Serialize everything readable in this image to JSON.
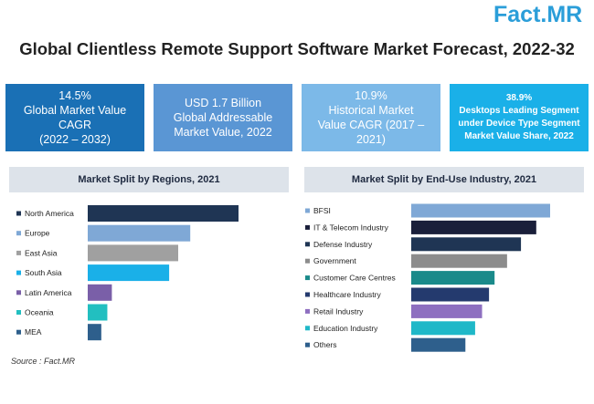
{
  "brand": {
    "name": "Fact.MR",
    "part1": "Fact",
    "dot": ".",
    "part2": "MR"
  },
  "title": "Global Clientless Remote Support Software Market Forecast, 2022-32",
  "stats": [
    {
      "lines": [
        "14.5%",
        "Global Market Value",
        "CAGR",
        "(2022 – 2032)"
      ],
      "color": "#1a70b5"
    },
    {
      "lines": [
        "USD 1.7 Billion",
        "Global Addressable",
        "Market Value, 2022"
      ],
      "color": "#5a96d4"
    },
    {
      "lines": [
        "10.9%",
        "Historical Market",
        "Value CAGR (2017 –",
        "2021)"
      ],
      "color": "#7cb9e8"
    },
    {
      "lines": [
        "38.9%",
        "Desktops Leading Segment",
        "under Device Type Segment",
        "Market Value Share, 2022"
      ],
      "color": "#1ab0e8"
    }
  ],
  "source": "Source : Fact.MR",
  "chart_data": [
    {
      "type": "bar",
      "orientation": "horizontal",
      "title": "Market Split by Regions, 2021",
      "categories": [
        "North America",
        "Europe",
        "East Asia",
        "South Asia",
        "Latin America",
        "Oceania",
        "MEA"
      ],
      "values": [
        100,
        68,
        60,
        54,
        16,
        13,
        9
      ],
      "colors": [
        "#1f3554",
        "#7fa8d6",
        "#a0a0a0",
        "#1ab0e8",
        "#7a5fa8",
        "#22bfc0",
        "#2e5f8c"
      ],
      "xlabel": "",
      "ylabel": "",
      "grid": false
    },
    {
      "type": "bar",
      "orientation": "horizontal",
      "title": "Market Split by End-Use Industry, 2021",
      "categories": [
        "BFSI",
        "IT & Telecom Industry",
        "Defense Industry",
        "Government",
        "Customer Care Centres",
        "Healthcare Industry",
        "Retail Industry",
        "Education Industry",
        "Others"
      ],
      "values": [
        100,
        90,
        79,
        69,
        60,
        56,
        51,
        46,
        39
      ],
      "colors": [
        "#7fa8d6",
        "#1a1f3a",
        "#1f3554",
        "#8c8c8c",
        "#1a8a8a",
        "#243a6e",
        "#8e6fc0",
        "#1fb8c8",
        "#2e5f8c"
      ],
      "xlabel": "",
      "ylabel": "",
      "grid": false
    }
  ]
}
